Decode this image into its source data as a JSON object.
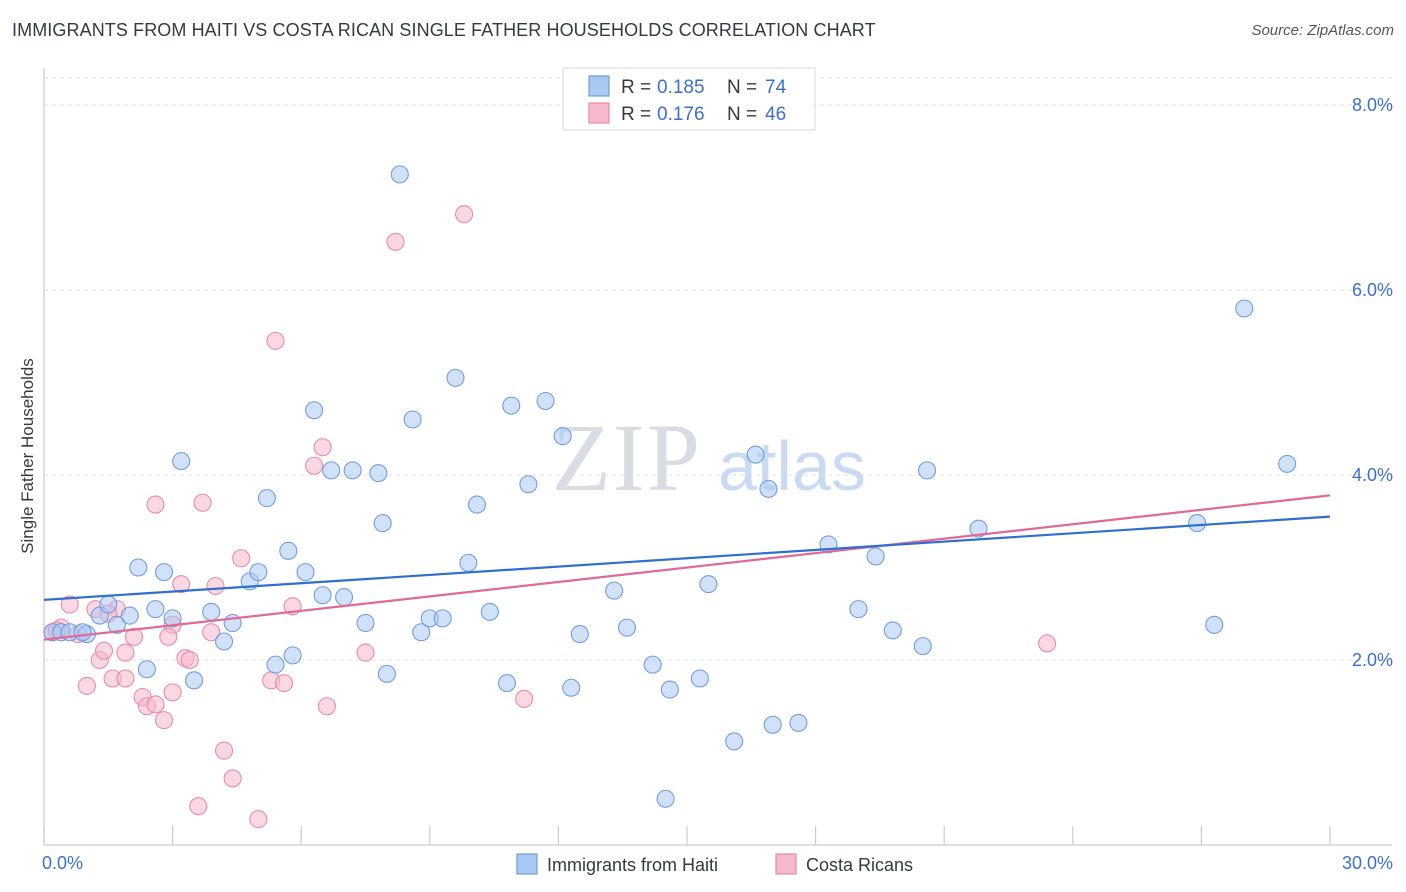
{
  "header": {
    "title": "IMMIGRANTS FROM HAITI VS COSTA RICAN SINGLE FATHER HOUSEHOLDS CORRELATION CHART",
    "source": "Source: ZipAtlas.com"
  },
  "watermark": {
    "zip": "ZIP",
    "atlas": "atlas"
  },
  "legend": {
    "rows": [
      {
        "r_label": "R =",
        "r_value": "0.185",
        "n_label": "N =",
        "n_value": "74"
      },
      {
        "r_label": "R =",
        "r_value": "0.176",
        "n_label": "N =",
        "n_value": "46"
      }
    ]
  },
  "bottom_legend": {
    "items": [
      {
        "label": "Immigrants from Haiti"
      },
      {
        "label": "Costa Ricans"
      }
    ]
  },
  "chart_data": {
    "type": "scatter",
    "title": "IMMIGRANTS FROM HAITI VS COSTA RICAN SINGLE FATHER HOUSEHOLDS CORRELATION CHART",
    "xlabel": "",
    "ylabel": "Single Father Households",
    "xlim": [
      0,
      30
    ],
    "ylim": [
      0,
      8.4
    ],
    "x_tick_labels": [
      {
        "value": 0,
        "label": "0.0%"
      },
      {
        "value": 30,
        "label": "30.0%"
      }
    ],
    "y_tick_labels": [
      {
        "value": 2,
        "label": "2.0%"
      },
      {
        "value": 4,
        "label": "4.0%"
      },
      {
        "value": 6,
        "label": "6.0%"
      },
      {
        "value": 8,
        "label": "8.0%"
      }
    ],
    "grid": true,
    "legend_position": "top-center",
    "colors": {
      "haiti_fill": "#a9c8f2",
      "haiti_stroke": "#6f9ee0",
      "haiti_line": "#2f6fcf",
      "costa_fill": "#f6b8cc",
      "costa_stroke": "#ea8aa8",
      "costa_line": "#e06a97",
      "tick_text": "#3d6fd0"
    },
    "series": [
      {
        "name": "Immigrants from Haiti",
        "trend": {
          "x": [
            0,
            30
          ],
          "y": [
            2.65,
            3.55
          ]
        },
        "points": [
          [
            0.2,
            2.3
          ],
          [
            0.4,
            2.3
          ],
          [
            0.6,
            2.3
          ],
          [
            1.0,
            2.28
          ],
          [
            1.3,
            2.48
          ],
          [
            1.5,
            2.6
          ],
          [
            1.7,
            2.38
          ],
          [
            2.0,
            2.48
          ],
          [
            2.2,
            3.0
          ],
          [
            2.4,
            1.9
          ],
          [
            2.6,
            2.55
          ],
          [
            2.8,
            2.95
          ],
          [
            3.0,
            2.45
          ],
          [
            3.2,
            4.15
          ],
          [
            3.5,
            1.78
          ],
          [
            3.9,
            2.52
          ],
          [
            4.2,
            2.2
          ],
          [
            4.4,
            2.4
          ],
          [
            4.8,
            2.85
          ],
          [
            5.0,
            2.95
          ],
          [
            5.2,
            3.75
          ],
          [
            5.4,
            1.95
          ],
          [
            5.7,
            3.18
          ],
          [
            5.8,
            2.05
          ],
          [
            6.1,
            2.95
          ],
          [
            6.3,
            4.7
          ],
          [
            6.5,
            2.7
          ],
          [
            6.7,
            4.05
          ],
          [
            7.0,
            2.68
          ],
          [
            7.2,
            4.05
          ],
          [
            7.5,
            2.4
          ],
          [
            7.8,
            4.02
          ],
          [
            7.9,
            3.48
          ],
          [
            8.0,
            1.85
          ],
          [
            8.3,
            7.25
          ],
          [
            8.6,
            4.6
          ],
          [
            8.8,
            2.3
          ],
          [
            9.0,
            2.45
          ],
          [
            9.3,
            2.45
          ],
          [
            9.6,
            5.05
          ],
          [
            9.9,
            3.05
          ],
          [
            10.1,
            3.68
          ],
          [
            10.4,
            2.52
          ],
          [
            10.8,
            1.75
          ],
          [
            10.9,
            4.75
          ],
          [
            11.3,
            3.9
          ],
          [
            11.7,
            4.8
          ],
          [
            12.1,
            4.42
          ],
          [
            12.3,
            1.7
          ],
          [
            12.5,
            2.28
          ],
          [
            13.3,
            2.75
          ],
          [
            13.6,
            2.35
          ],
          [
            14.2,
            1.95
          ],
          [
            14.5,
            0.5
          ],
          [
            14.6,
            1.68
          ],
          [
            15.3,
            1.8
          ],
          [
            15.5,
            2.82
          ],
          [
            16.1,
            1.12
          ],
          [
            16.6,
            4.22
          ],
          [
            16.9,
            3.85
          ],
          [
            17.0,
            1.3
          ],
          [
            17.6,
            1.32
          ],
          [
            18.3,
            3.25
          ],
          [
            19.0,
            2.55
          ],
          [
            19.4,
            3.12
          ],
          [
            19.8,
            2.32
          ],
          [
            20.5,
            2.15
          ],
          [
            20.6,
            4.05
          ],
          [
            21.8,
            3.42
          ],
          [
            26.9,
            3.48
          ],
          [
            27.3,
            2.38
          ],
          [
            28.0,
            5.8
          ],
          [
            29.0,
            4.12
          ],
          [
            0.9,
            2.3
          ]
        ]
      },
      {
        "name": "Costa Ricans",
        "trend": {
          "x": [
            0,
            30
          ],
          "y": [
            2.22,
            3.78
          ]
        },
        "points": [
          [
            0.2,
            2.3
          ],
          [
            0.4,
            2.35
          ],
          [
            0.6,
            2.6
          ],
          [
            0.8,
            2.28
          ],
          [
            1.0,
            1.72
          ],
          [
            1.2,
            2.55
          ],
          [
            1.3,
            2.0
          ],
          [
            1.4,
            2.1
          ],
          [
            1.6,
            1.8
          ],
          [
            1.7,
            2.55
          ],
          [
            1.9,
            1.8
          ],
          [
            1.9,
            2.08
          ],
          [
            2.1,
            2.25
          ],
          [
            2.3,
            1.6
          ],
          [
            2.4,
            1.5
          ],
          [
            2.6,
            1.52
          ],
          [
            2.6,
            3.68
          ],
          [
            2.8,
            1.35
          ],
          [
            3.0,
            2.38
          ],
          [
            3.0,
            1.65
          ],
          [
            3.2,
            2.82
          ],
          [
            3.3,
            2.02
          ],
          [
            3.4,
            2.0
          ],
          [
            3.6,
            0.42
          ],
          [
            3.7,
            3.7
          ],
          [
            3.9,
            2.3
          ],
          [
            4.0,
            2.8
          ],
          [
            4.2,
            1.02
          ],
          [
            4.4,
            0.72
          ],
          [
            4.6,
            3.1
          ],
          [
            5.0,
            0.28
          ],
          [
            5.3,
            1.78
          ],
          [
            5.4,
            5.45
          ],
          [
            5.6,
            1.75
          ],
          [
            5.8,
            2.58
          ],
          [
            6.3,
            4.1
          ],
          [
            6.5,
            4.3
          ],
          [
            6.6,
            1.5
          ],
          [
            7.5,
            2.08
          ],
          [
            8.2,
            6.52
          ],
          [
            9.8,
            6.82
          ],
          [
            11.2,
            1.58
          ],
          [
            23.4,
            2.18
          ],
          [
            0.3,
            2.32
          ],
          [
            2.9,
            2.25
          ],
          [
            1.5,
            2.5
          ]
        ]
      }
    ]
  }
}
